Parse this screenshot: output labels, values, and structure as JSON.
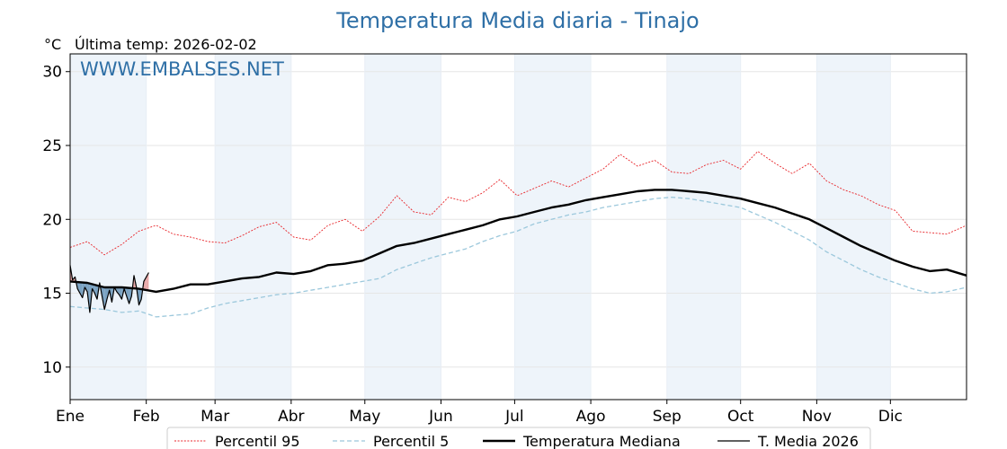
{
  "chart_data": {
    "type": "line",
    "title": "Temperatura Media diaria - Tinajo",
    "unit": "°C",
    "last_update": "Última temp: 2026-02-02",
    "watermark": "WWW.EMBALSES.NET",
    "ylim": [
      7.8,
      31.2
    ],
    "yticks": [
      10,
      15,
      20,
      25,
      30
    ],
    "x_range_days": [
      1,
      366
    ],
    "month_ticks": [
      {
        "label": "Ene",
        "day": 1
      },
      {
        "label": "Feb",
        "day": 32
      },
      {
        "label": "Mar",
        "day": 60
      },
      {
        "label": "Abr",
        "day": 91
      },
      {
        "label": "May",
        "day": 121
      },
      {
        "label": "Jun",
        "day": 152
      },
      {
        "label": "Jul",
        "day": 182
      },
      {
        "label": "Ago",
        "day": 213
      },
      {
        "label": "Sep",
        "day": 244
      },
      {
        "label": "Oct",
        "day": 274
      },
      {
        "label": "Nov",
        "day": 305
      },
      {
        "label": "Dic",
        "day": 335
      }
    ],
    "grid": true,
    "legend_position": "bottom",
    "colors": {
      "p95": "#e8262b",
      "p5": "#9cc8dc",
      "median": "#000000",
      "current": "#000000",
      "above_fill": "#e8a9a9",
      "below_fill": "#7aa2c2",
      "shade": "#eef4fa"
    },
    "series": [
      {
        "name": "Percentil 95",
        "style": "dotted-red",
        "points": [
          [
            1,
            18.1
          ],
          [
            8,
            18.5
          ],
          [
            15,
            17.6
          ],
          [
            22,
            18.3
          ],
          [
            29,
            19.2
          ],
          [
            36,
            19.6
          ],
          [
            43,
            19.0
          ],
          [
            50,
            18.8
          ],
          [
            57,
            18.5
          ],
          [
            64,
            18.4
          ],
          [
            71,
            18.9
          ],
          [
            78,
            19.5
          ],
          [
            85,
            19.8
          ],
          [
            92,
            18.8
          ],
          [
            99,
            18.6
          ],
          [
            106,
            19.6
          ],
          [
            113,
            20.0
          ],
          [
            120,
            19.2
          ],
          [
            127,
            20.2
          ],
          [
            134,
            21.6
          ],
          [
            141,
            20.5
          ],
          [
            148,
            20.3
          ],
          [
            155,
            21.5
          ],
          [
            162,
            21.2
          ],
          [
            169,
            21.8
          ],
          [
            176,
            22.7
          ],
          [
            183,
            21.6
          ],
          [
            190,
            22.1
          ],
          [
            197,
            22.6
          ],
          [
            204,
            22.2
          ],
          [
            211,
            22.8
          ],
          [
            218,
            23.4
          ],
          [
            225,
            24.4
          ],
          [
            232,
            23.6
          ],
          [
            239,
            24.0
          ],
          [
            246,
            23.2
          ],
          [
            253,
            23.1
          ],
          [
            260,
            23.7
          ],
          [
            267,
            24.0
          ],
          [
            274,
            23.4
          ],
          [
            281,
            24.6
          ],
          [
            288,
            23.8
          ],
          [
            295,
            23.1
          ],
          [
            302,
            23.8
          ],
          [
            309,
            22.6
          ],
          [
            316,
            22.0
          ],
          [
            323,
            21.6
          ],
          [
            330,
            21.0
          ],
          [
            337,
            20.6
          ],
          [
            344,
            19.2
          ],
          [
            351,
            19.1
          ],
          [
            358,
            19.0
          ],
          [
            366,
            19.6
          ]
        ]
      },
      {
        "name": "Percentil 5",
        "style": "dashed-lightblue",
        "points": [
          [
            1,
            14.1
          ],
          [
            8,
            14.0
          ],
          [
            15,
            13.9
          ],
          [
            22,
            13.7
          ],
          [
            29,
            13.8
          ],
          [
            36,
            13.4
          ],
          [
            43,
            13.5
          ],
          [
            50,
            13.6
          ],
          [
            57,
            14.0
          ],
          [
            64,
            14.3
          ],
          [
            71,
            14.5
          ],
          [
            78,
            14.7
          ],
          [
            85,
            14.9
          ],
          [
            92,
            15.0
          ],
          [
            99,
            15.2
          ],
          [
            106,
            15.4
          ],
          [
            113,
            15.6
          ],
          [
            120,
            15.8
          ],
          [
            127,
            16.0
          ],
          [
            134,
            16.6
          ],
          [
            141,
            17.0
          ],
          [
            148,
            17.4
          ],
          [
            155,
            17.7
          ],
          [
            162,
            18.0
          ],
          [
            169,
            18.5
          ],
          [
            176,
            18.9
          ],
          [
            183,
            19.2
          ],
          [
            190,
            19.7
          ],
          [
            197,
            20.0
          ],
          [
            204,
            20.3
          ],
          [
            211,
            20.5
          ],
          [
            218,
            20.8
          ],
          [
            225,
            21.0
          ],
          [
            232,
            21.2
          ],
          [
            239,
            21.4
          ],
          [
            246,
            21.5
          ],
          [
            253,
            21.4
          ],
          [
            260,
            21.2
          ],
          [
            267,
            21.0
          ],
          [
            274,
            20.8
          ],
          [
            281,
            20.3
          ],
          [
            288,
            19.8
          ],
          [
            295,
            19.2
          ],
          [
            302,
            18.6
          ],
          [
            309,
            17.8
          ],
          [
            316,
            17.2
          ],
          [
            323,
            16.6
          ],
          [
            330,
            16.1
          ],
          [
            337,
            15.7
          ],
          [
            344,
            15.3
          ],
          [
            351,
            15.0
          ],
          [
            358,
            15.1
          ],
          [
            366,
            15.4
          ]
        ]
      },
      {
        "name": "Temperatura Mediana",
        "style": "thick-black",
        "points": [
          [
            1,
            15.8
          ],
          [
            8,
            15.7
          ],
          [
            15,
            15.4
          ],
          [
            22,
            15.4
          ],
          [
            29,
            15.3
          ],
          [
            36,
            15.1
          ],
          [
            43,
            15.3
          ],
          [
            50,
            15.6
          ],
          [
            57,
            15.6
          ],
          [
            64,
            15.8
          ],
          [
            71,
            16.0
          ],
          [
            78,
            16.1
          ],
          [
            85,
            16.4
          ],
          [
            92,
            16.3
          ],
          [
            99,
            16.5
          ],
          [
            106,
            16.9
          ],
          [
            113,
            17.0
          ],
          [
            120,
            17.2
          ],
          [
            127,
            17.7
          ],
          [
            134,
            18.2
          ],
          [
            141,
            18.4
          ],
          [
            148,
            18.7
          ],
          [
            155,
            19.0
          ],
          [
            162,
            19.3
          ],
          [
            169,
            19.6
          ],
          [
            176,
            20.0
          ],
          [
            183,
            20.2
          ],
          [
            190,
            20.5
          ],
          [
            197,
            20.8
          ],
          [
            204,
            21.0
          ],
          [
            211,
            21.3
          ],
          [
            218,
            21.5
          ],
          [
            225,
            21.7
          ],
          [
            232,
            21.9
          ],
          [
            239,
            22.0
          ],
          [
            246,
            22.0
          ],
          [
            253,
            21.9
          ],
          [
            260,
            21.8
          ],
          [
            267,
            21.6
          ],
          [
            274,
            21.4
          ],
          [
            281,
            21.1
          ],
          [
            288,
            20.8
          ],
          [
            295,
            20.4
          ],
          [
            302,
            20.0
          ],
          [
            309,
            19.4
          ],
          [
            316,
            18.8
          ],
          [
            323,
            18.2
          ],
          [
            330,
            17.7
          ],
          [
            337,
            17.2
          ],
          [
            344,
            16.8
          ],
          [
            351,
            16.5
          ],
          [
            358,
            16.6
          ],
          [
            366,
            16.2
          ]
        ]
      },
      {
        "name": "T. Media 2026",
        "style": "thin-black",
        "points": [
          [
            1,
            16.9
          ],
          [
            2,
            15.9
          ],
          [
            3,
            16.1
          ],
          [
            4,
            15.3
          ],
          [
            5,
            15.0
          ],
          [
            6,
            14.7
          ],
          [
            7,
            15.4
          ],
          [
            8,
            15.1
          ],
          [
            9,
            13.7
          ],
          [
            10,
            15.3
          ],
          [
            11,
            15.0
          ],
          [
            12,
            14.6
          ],
          [
            13,
            15.7
          ],
          [
            14,
            14.8
          ],
          [
            15,
            13.9
          ],
          [
            16,
            14.6
          ],
          [
            17,
            15.2
          ],
          [
            18,
            14.4
          ],
          [
            19,
            15.4
          ],
          [
            20,
            15.1
          ],
          [
            21,
            14.9
          ],
          [
            22,
            14.6
          ],
          [
            23,
            15.3
          ],
          [
            24,
            14.8
          ],
          [
            25,
            14.3
          ],
          [
            26,
            14.8
          ],
          [
            27,
            16.2
          ],
          [
            28,
            15.4
          ],
          [
            29,
            14.2
          ],
          [
            30,
            14.6
          ],
          [
            31,
            15.8
          ],
          [
            32,
            16.1
          ],
          [
            33,
            16.4
          ]
        ]
      }
    ]
  }
}
